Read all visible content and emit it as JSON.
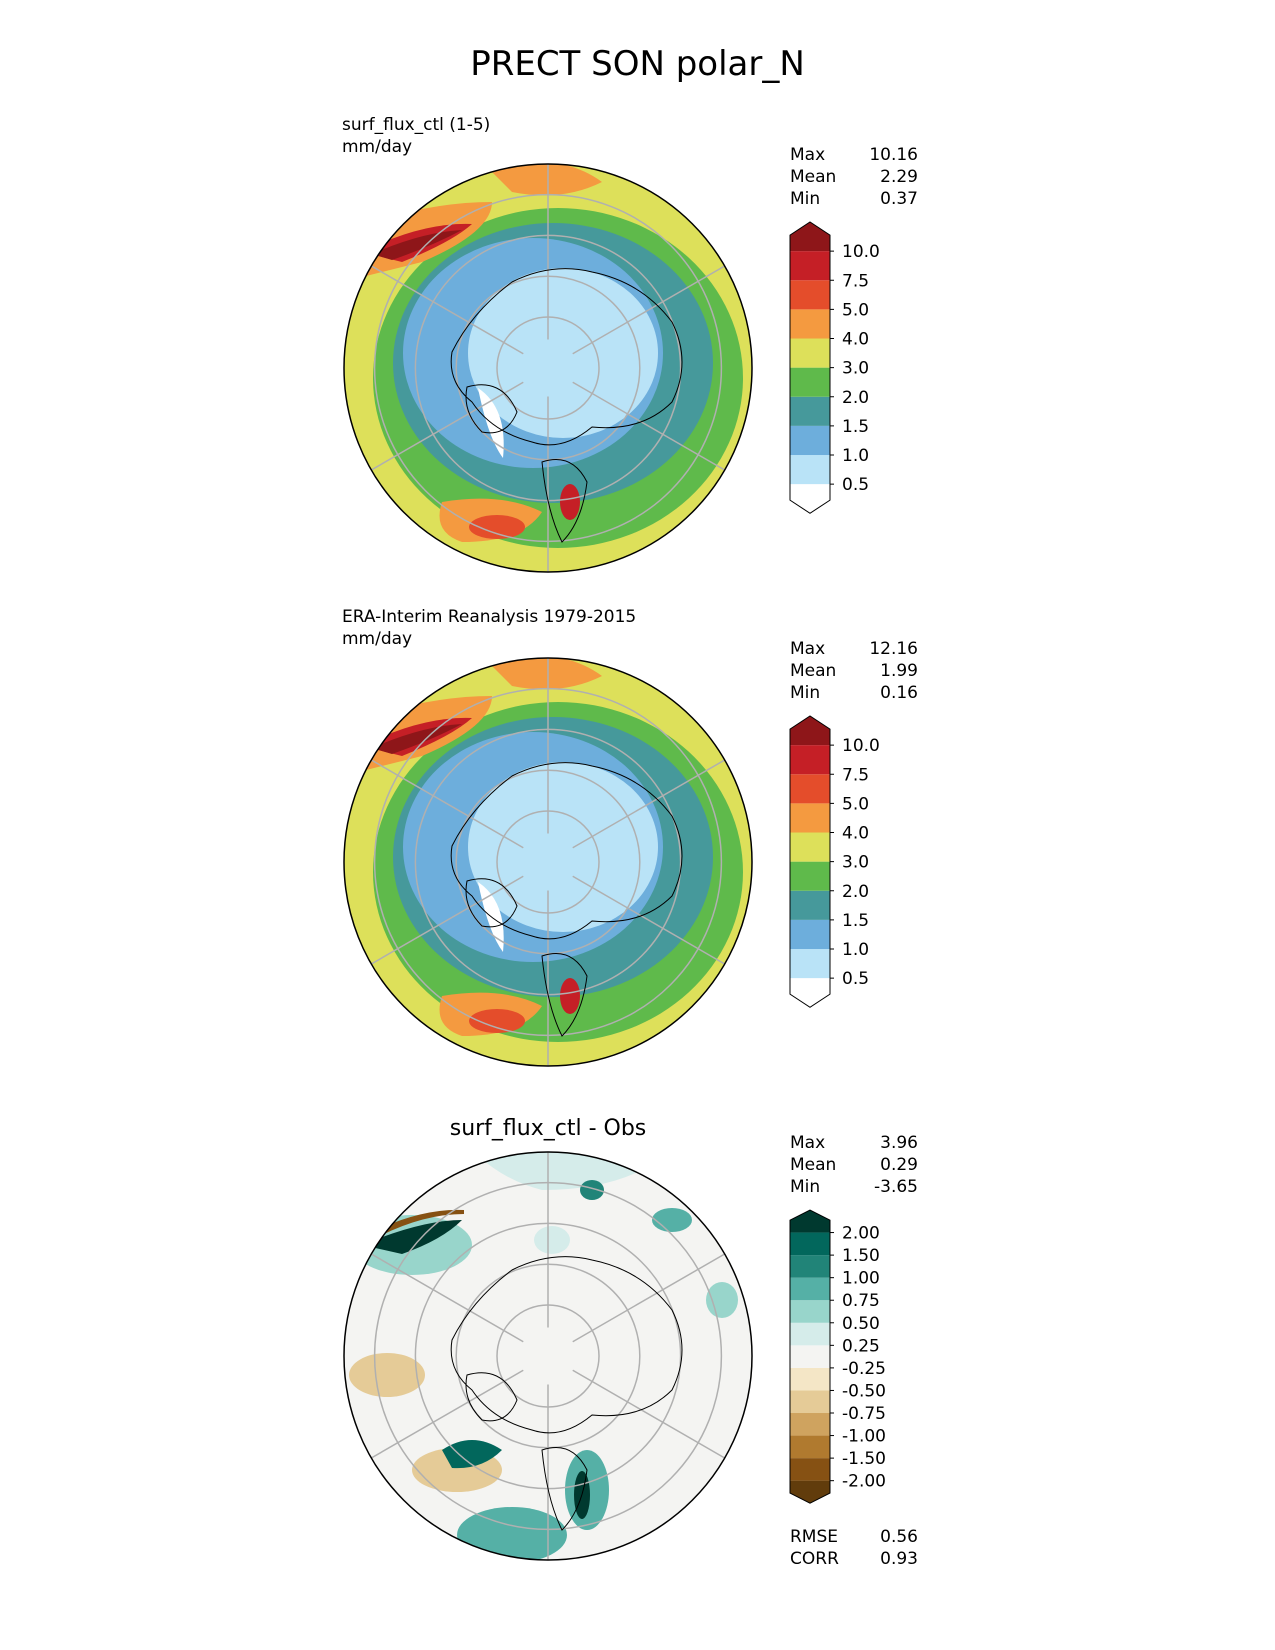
{
  "title": "PRECT SON polar_N",
  "colors": {
    "precip": [
      "#ffffff",
      "#b9e3f7",
      "#6daedc",
      "#46999b",
      "#5fba4b",
      "#dde05a",
      "#f49a40",
      "#e44d2b",
      "#c51f26",
      "#8e1619"
    ],
    "diff": [
      "#613c0c",
      "#865113",
      "#b07a2f",
      "#cfa35f",
      "#e5cb97",
      "#f4e6c6",
      "#f4f4f2",
      "#d5ecea",
      "#98d5cb",
      "#55b0a6",
      "#218478",
      "#02675c",
      "#00392f"
    ]
  },
  "chart_data": [
    {
      "type": "heatmap",
      "projection": "north-polar-stereographic",
      "title": "surf_flux_ctl (1-5)",
      "units": "mm/day",
      "stats": {
        "max": "10.16",
        "mean": "2.29",
        "min": "0.37"
      },
      "colorbar_ticks": [
        "0.5",
        "1.0",
        "1.5",
        "2.0",
        "3.0",
        "4.0",
        "5.0",
        "7.5",
        "10.0"
      ],
      "colorbar_extend": "both"
    },
    {
      "type": "heatmap",
      "projection": "north-polar-stereographic",
      "title": "ERA-Interim Reanalysis 1979-2015",
      "units": "mm/day",
      "stats": {
        "max": "12.16",
        "mean": "1.99",
        "min": "0.16"
      },
      "colorbar_ticks": [
        "0.5",
        "1.0",
        "1.5",
        "2.0",
        "3.0",
        "4.0",
        "5.0",
        "7.5",
        "10.0"
      ],
      "colorbar_extend": "both"
    },
    {
      "type": "heatmap",
      "projection": "north-polar-stereographic",
      "title": "surf_flux_ctl - Obs",
      "stats": {
        "max": "3.96",
        "mean": "0.29",
        "min": "-3.65"
      },
      "colorbar_ticks": [
        "-2.00",
        "-1.50",
        "-1.00",
        "-0.75",
        "-0.50",
        "-0.25",
        "0.25",
        "0.50",
        "0.75",
        "1.00",
        "1.50",
        "2.00"
      ],
      "colorbar_extend": "both",
      "rmse": "0.56",
      "corr": "0.93"
    }
  ],
  "labels": {
    "max": "Max",
    "mean": "Mean",
    "min": "Min",
    "rmse": "RMSE",
    "corr": "CORR"
  }
}
